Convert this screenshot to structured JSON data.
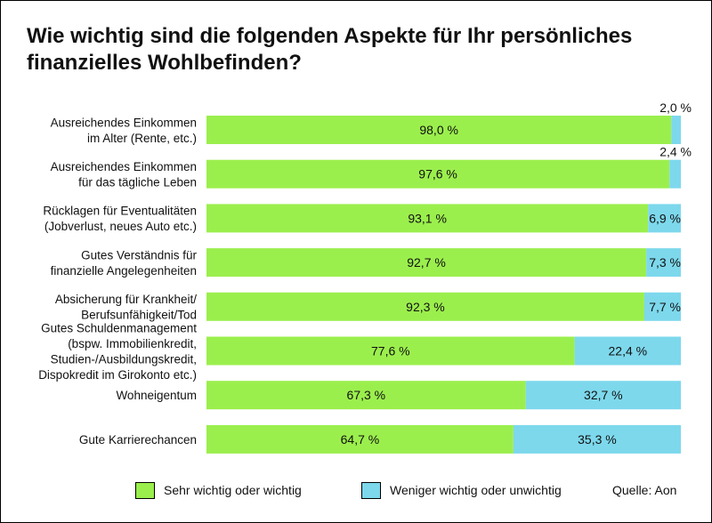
{
  "title": "Wie wichtig sind die folgenden Aspekte für Ihr persönliches\nfinanzielles Wohlbefinden?",
  "source": "Quelle: Aon",
  "colors": {
    "important": "#9bef4d",
    "less_important": "#7dd8ec"
  },
  "legend": [
    {
      "label": "Sehr wichtig oder wichtig",
      "color": "#9bef4d"
    },
    {
      "label": "Weniger wichtig oder unwichtig",
      "color": "#7dd8ec"
    }
  ],
  "chart_data": {
    "type": "bar",
    "orientation": "horizontal",
    "stacked": true,
    "legend_position": "bottom",
    "xlim": [
      0,
      100
    ],
    "categories": [
      "Ausreichendes Einkommen\nim Alter (Rente, etc.)",
      "Ausreichendes Einkommen\nfür das tägliche Leben",
      "Rücklagen für Eventualitäten\n(Jobverlust, neues Auto etc.)",
      "Gutes Verständnis für\nfinanzielle Angelegenheiten",
      "Absicherung für Krankheit/\nBerufsunfähigkeit/Tod",
      "Gutes Schuldenmanagement\n(bspw. Immobilienkredit,\nStudien-/Ausbildungskredit,\nDispokredit im Girokonto etc.)",
      "Wohneigentum",
      "Gute Karrierechancen"
    ],
    "series": [
      {
        "name": "Sehr wichtig oder wichtig",
        "values": [
          98.0,
          97.6,
          93.1,
          92.7,
          92.3,
          77.6,
          67.3,
          64.7
        ],
        "labels": [
          "98,0 %",
          "97,6 %",
          "93,1 %",
          "92,7 %",
          "92,3 %",
          "77,6 %",
          "67,3 %",
          "64,7 %"
        ]
      },
      {
        "name": "Weniger wichtig oder unwichtig",
        "values": [
          2.0,
          2.4,
          6.9,
          7.3,
          7.7,
          22.4,
          32.7,
          35.3
        ],
        "labels": [
          "2,0 %",
          "2,4 %",
          "6,9 %",
          "7,3 %",
          "7,7 %",
          "22,4 %",
          "32,7 %",
          "35,3 %"
        ]
      }
    ]
  }
}
